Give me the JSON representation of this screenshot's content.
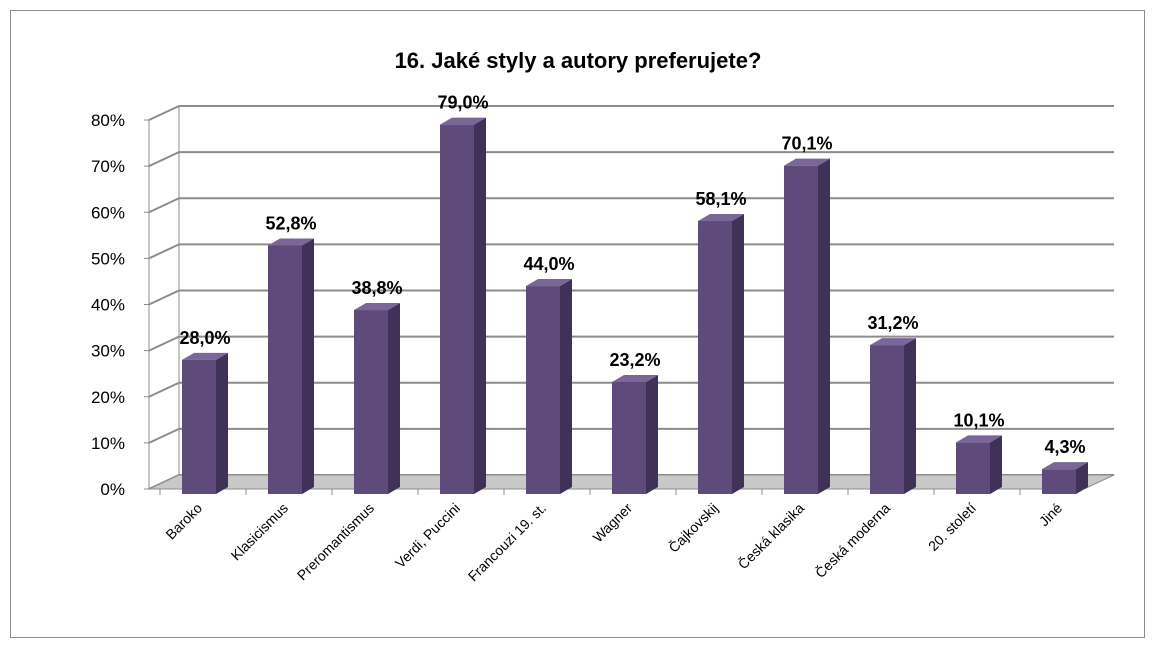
{
  "chart_data": {
    "type": "bar",
    "title": "16. Jaké styly a autory preferujete?",
    "categories": [
      "Baroko",
      "Klasicismus",
      "Preromantismus",
      "Verdi, Puccini",
      "Francouzi 19. st.",
      "Wagner",
      "Čajkovskij",
      "Česká klasika",
      "Česká moderna",
      "20. století",
      "Jiné"
    ],
    "values": [
      28.0,
      52.8,
      38.8,
      79.0,
      44.0,
      23.2,
      58.1,
      70.1,
      31.2,
      10.1,
      4.3
    ],
    "data_labels": [
      "28,0%",
      "52,8%",
      "38,8%",
      "79,0%",
      "44,0%",
      "23,2%",
      "58,1%",
      "70,1%",
      "31,2%",
      "10,1%",
      "4,3%"
    ],
    "yticks": [
      "0%",
      "10%",
      "20%",
      "30%",
      "40%",
      "50%",
      "60%",
      "70%",
      "80%"
    ],
    "ylim": [
      0,
      80
    ],
    "xlabel": "",
    "ylabel": "",
    "grid": true,
    "legend": "none",
    "style": "3d-column",
    "colors": {
      "bar_front": "#5f4b7b",
      "bar_side": "#3f3157",
      "bar_top": "#7a6698",
      "grid": "#8c8c8c",
      "floor": "#c8c8c8"
    }
  }
}
